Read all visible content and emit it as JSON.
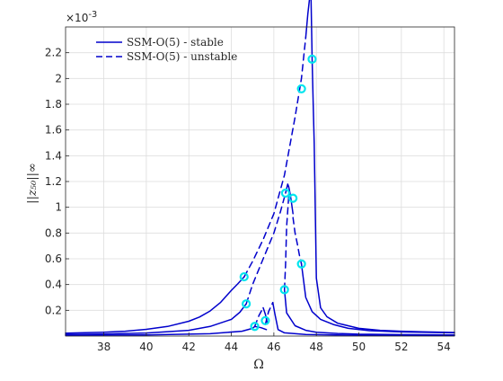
{
  "chart_data": {
    "type": "line",
    "xlabel": "Ω",
    "ylabel": "||z₅₀||∞",
    "exponent_label": "×10",
    "exponent_power": "-3",
    "xlim": [
      36.2,
      54.5
    ],
    "ylim": [
      0,
      0.0024
    ],
    "xticks": [
      38,
      40,
      42,
      44,
      46,
      48,
      50,
      52,
      54
    ],
    "yticks": [
      0.0002,
      0.0004,
      0.0006,
      0.0008,
      0.001,
      0.0012,
      0.0014,
      0.0016,
      0.0018,
      0.002,
      0.0022
    ],
    "xtick_labels": [
      "38",
      "40",
      "42",
      "44",
      "46",
      "48",
      "50",
      "52",
      "54"
    ],
    "ytick_labels": [
      "0.2",
      "0.4",
      "0.6",
      "0.8",
      "1",
      "1.2",
      "1.4",
      "1.6",
      "1.8",
      "2",
      "2.2"
    ],
    "grid": true,
    "legend_position": "top-left",
    "legend": [
      {
        "label": "SSM-O(5) - stable",
        "style": "solid"
      },
      {
        "label": "SSM-O(5) - unstable",
        "style": "dashed"
      }
    ],
    "colors": {
      "curve": "#0000cc",
      "marker": "#00e5ee",
      "grid": "#dddddd",
      "axis": "#262626"
    },
    "series": [
      {
        "style": "solid",
        "x": [
          36.2,
          38,
          39,
          40,
          41,
          42,
          42.5,
          43,
          43.5,
          44,
          44.3,
          44.6
        ],
        "y": [
          2.2e-05,
          3e-05,
          3.8e-05,
          5.2e-05,
          7.5e-05,
          0.000115,
          0.000148,
          0.000195,
          0.000262,
          0.000355,
          0.000405,
          0.00046
        ]
      },
      {
        "style": "dashed",
        "x": [
          44.6,
          45,
          45.5,
          46,
          46.5,
          47,
          47.3,
          47.5
        ],
        "y": [
          0.00046,
          0.00058,
          0.00075,
          0.00095,
          0.00125,
          0.0017,
          0.002,
          0.00232
        ]
      },
      {
        "style": "solid",
        "x": [
          47.5,
          47.6,
          47.7,
          47.75,
          47.8,
          47.85,
          47.9,
          48,
          48.2,
          48.5,
          49,
          50,
          51,
          52,
          53,
          54,
          54.5
        ],
        "y": [
          0.00232,
          0.0025,
          0.00265,
          0.00262,
          0.00215,
          0.0018,
          0.0015,
          0.00045,
          0.00022,
          0.00015,
          0.0001,
          6e-05,
          4.5e-05,
          3.8e-05,
          3.3e-05,
          3e-05,
          2.8e-05
        ]
      },
      {
        "style": "solid",
        "x": [
          36.2,
          38,
          40,
          42,
          43,
          44,
          44.4,
          44.7
        ],
        "y": [
          1.2e-05,
          1.6e-05,
          2.4e-05,
          4.5e-05,
          7.5e-05,
          0.00013,
          0.000185,
          0.00025
        ]
      },
      {
        "style": "dashed",
        "x": [
          44.7,
          45,
          45.5,
          46,
          46.3,
          46.55
        ],
        "y": [
          0.00025,
          0.0004,
          0.0006,
          0.0008,
          0.00096,
          0.00111
        ]
      },
      {
        "style": "solid",
        "x": [
          46.55,
          46.65,
          46.7,
          46.75,
          46.8,
          46.9
        ],
        "y": [
          0.00111,
          0.00118,
          0.00116,
          0.00112,
          0.00107,
          0.00095
        ]
      },
      {
        "style": "dashed",
        "x": [
          46.9,
          47,
          47.1,
          47.2,
          47.3
        ],
        "y": [
          0.00092,
          0.0008,
          0.00072,
          0.00063,
          0.00056
        ]
      },
      {
        "style": "solid",
        "x": [
          47.3,
          47.5,
          47.8,
          48.2,
          48.8,
          49.5,
          50.5,
          52,
          54.5
        ],
        "y": [
          0.00056,
          0.0003,
          0.00019,
          0.00013,
          9e-05,
          6e-05,
          4.2e-05,
          3.2e-05,
          2.5e-05
        ]
      },
      {
        "style": "dashed",
        "x": [
          46.7,
          46.6,
          46.55,
          46.5
        ],
        "y": [
          0.00108,
          0.00085,
          0.00055,
          0.00036
        ]
      },
      {
        "style": "solid",
        "x": [
          46.5,
          46.6,
          47,
          47.5,
          48,
          49,
          50,
          52,
          54.5
        ],
        "y": [
          0.00036,
          0.00018,
          8e-05,
          4.5e-05,
          3e-05,
          2e-05,
          1.5e-05,
          1.1e-05,
          9e-06
        ]
      },
      {
        "style": "solid",
        "x": [
          36.2,
          40,
          43,
          44.5,
          45,
          45.1
        ],
        "y": [
          6e-06,
          9e-06,
          1.8e-05,
          3.8e-05,
          6e-05,
          7.5e-05
        ]
      },
      {
        "style": "dashed",
        "x": [
          45.1,
          45.3,
          45.5
        ],
        "y": [
          7.5e-05,
          0.00016,
          0.00022
        ]
      },
      {
        "style": "solid",
        "x": [
          45.5,
          45.6,
          45.7
        ],
        "y": [
          0.00022,
          0.00017,
          9.5e-05
        ]
      },
      {
        "style": "solid",
        "x": [
          45.1,
          45.4,
          45.65
        ],
        "y": [
          7.5e-05,
          6.5e-05,
          5e-05
        ]
      },
      {
        "style": "dashed",
        "x": [
          45.6,
          45.75,
          45.95
        ],
        "y": [
          9e-05,
          0.00019,
          0.00026
        ]
      },
      {
        "style": "solid",
        "x": [
          45.95,
          46.05,
          46.2,
          46.5,
          47.5,
          50,
          54.5
        ],
        "y": [
          0.00026,
          0.00017,
          5e-05,
          2.5e-05,
          1.2e-05,
          6e-06,
          4e-06
        ]
      }
    ],
    "markers": {
      "x": [
        44.6,
        47.8,
        44.7,
        46.55,
        47.3,
        46.5,
        46.9,
        47.3,
        45.1,
        45.6
      ],
      "y": [
        0.00046,
        0.00215,
        0.00025,
        0.00111,
        0.00192,
        0.00036,
        0.00107,
        0.00056,
        7.5e-05,
        0.00012
      ]
    }
  }
}
